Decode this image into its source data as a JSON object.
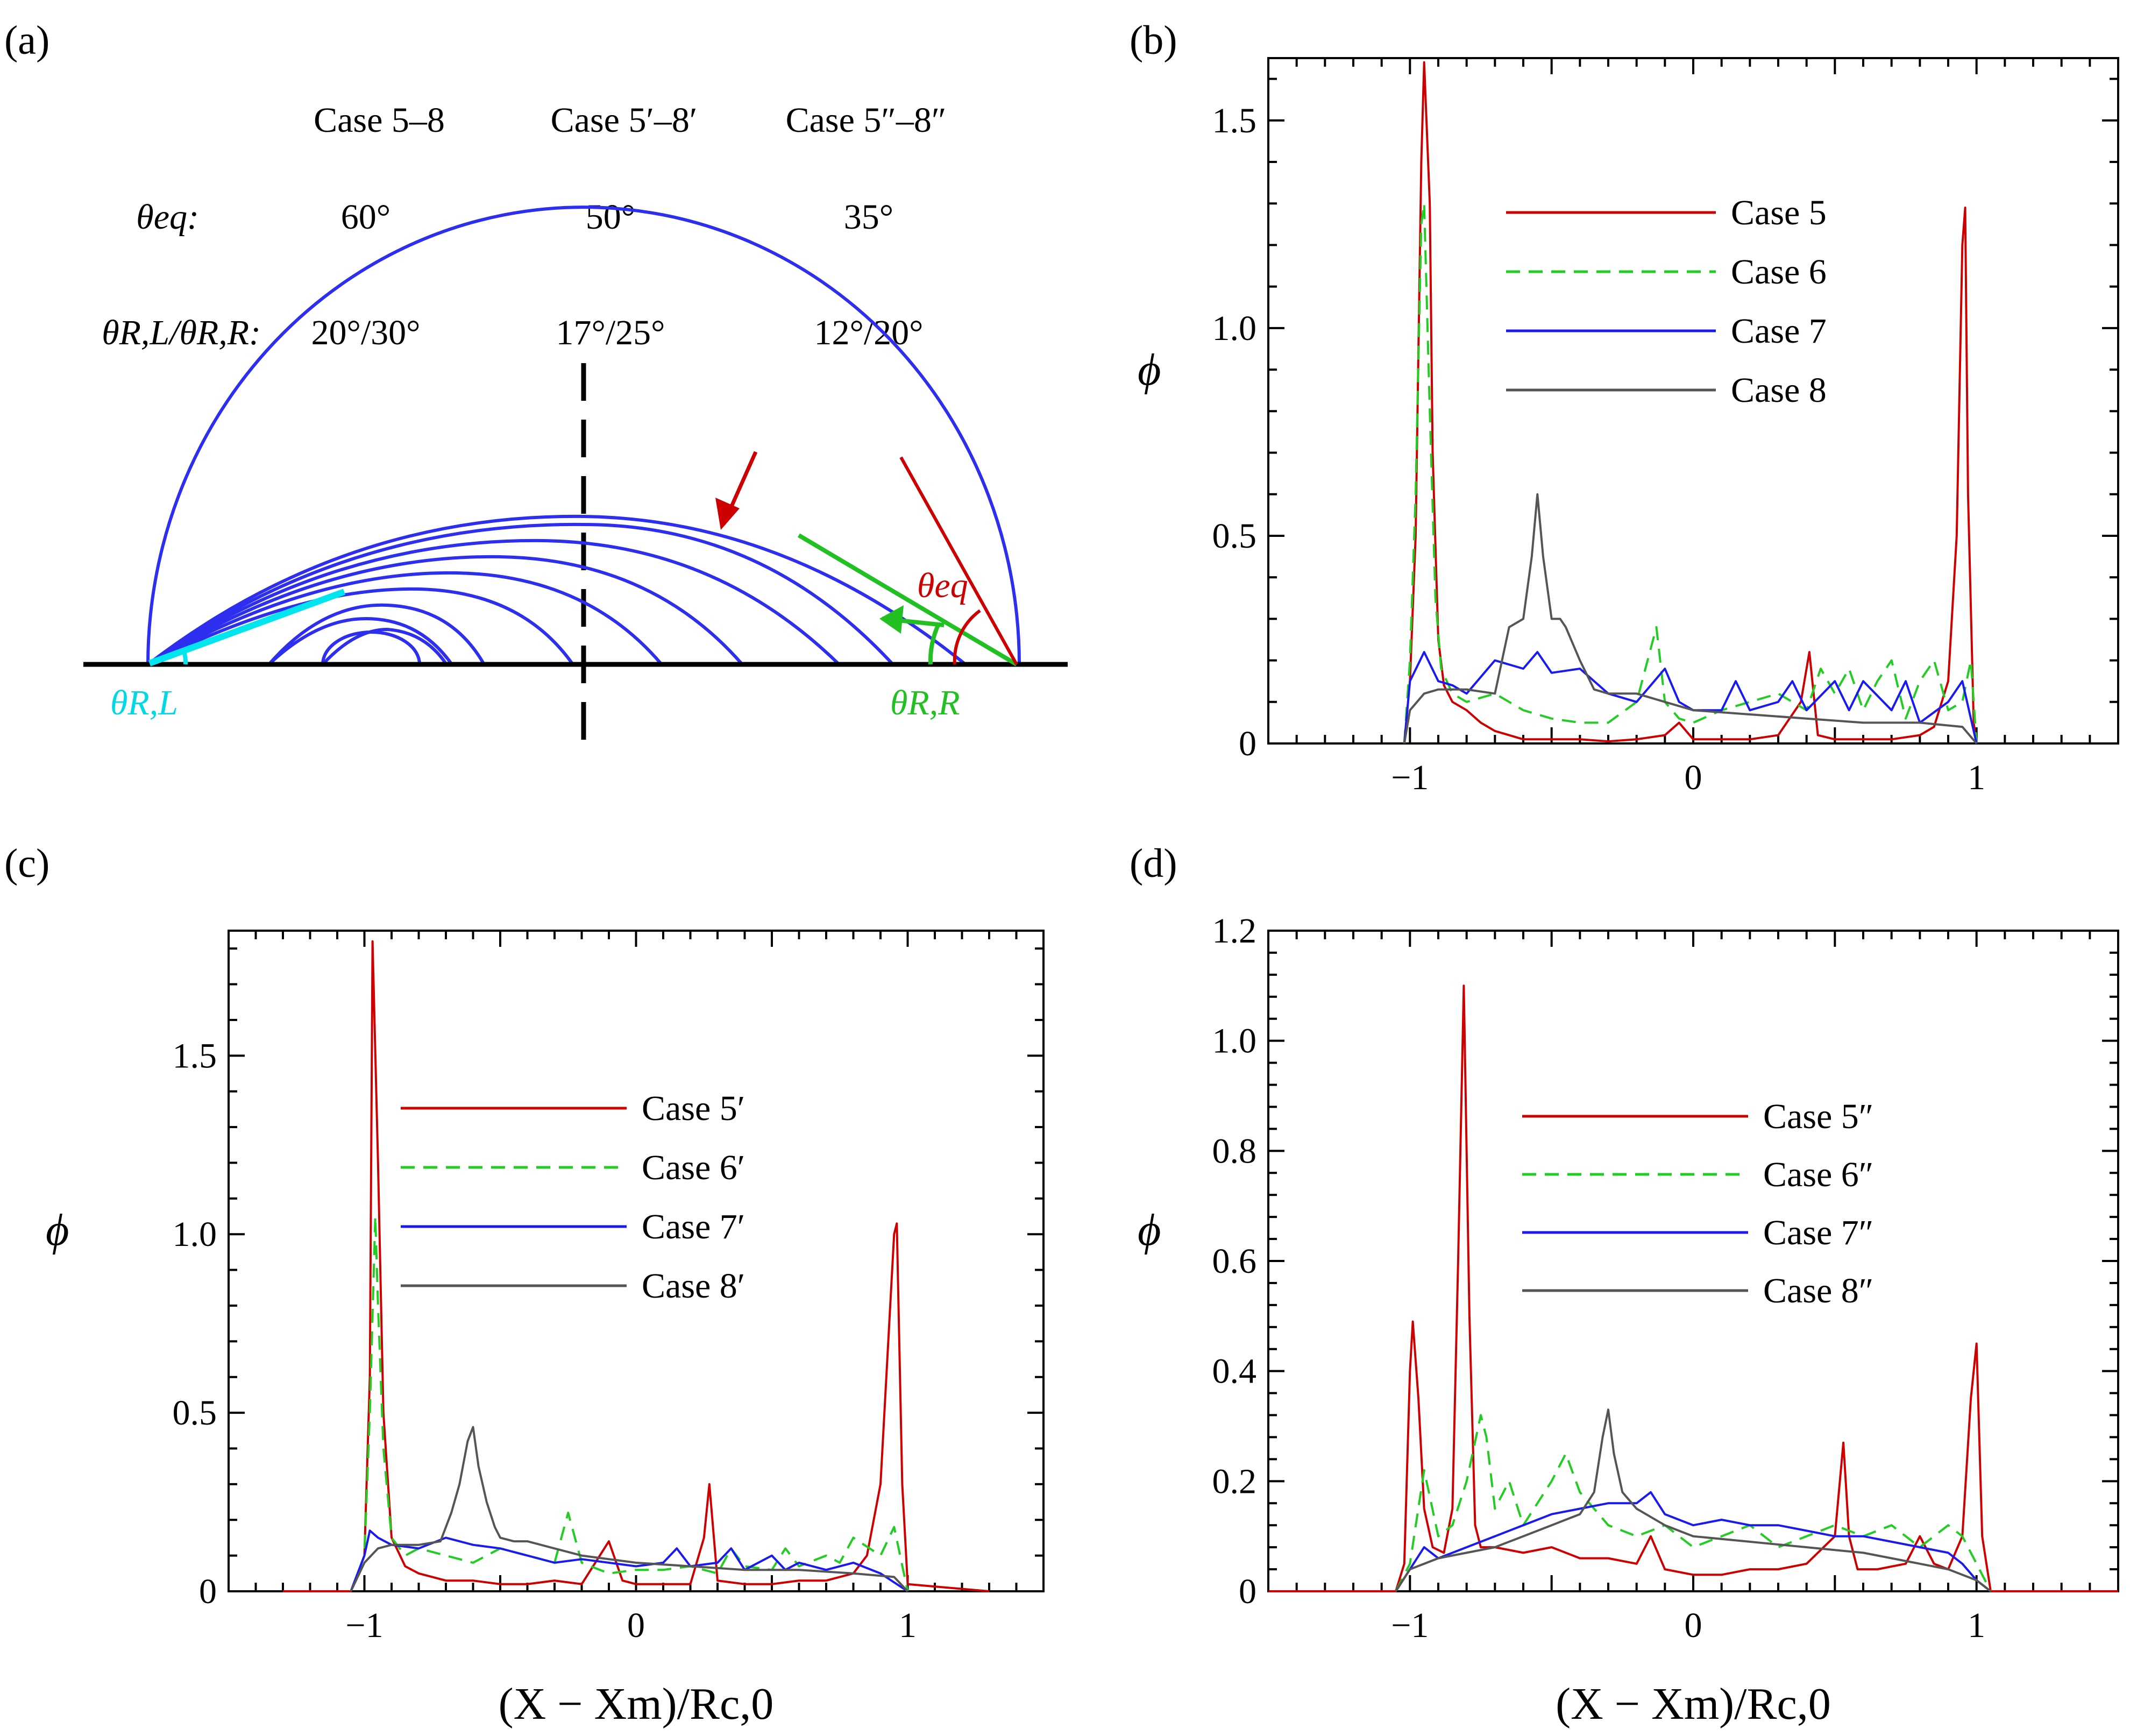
{
  "colors": {
    "case5": "#cc0000",
    "case6": "#22cc22",
    "case7": "#1a1aee",
    "case8": "#555555",
    "drop": "#2e2eee",
    "left_angle": "#00e5ee",
    "right_angle": "#22c022",
    "eq_angle": "#cc0000"
  },
  "panel_a": {
    "label": "(a)",
    "headers": [
      "Case 5–8",
      "Case 5′–8′",
      "Case 5″–8″"
    ],
    "row_eq_label": "θeq:",
    "row_eq_values": [
      "60°",
      "50°",
      "35°"
    ],
    "row_r_label": "θR,L/θR,R:",
    "row_r_values": [
      "20°/30°",
      "17°/25°",
      "12°/20°"
    ],
    "label_left": "θR,L",
    "label_right": "θR,R",
    "label_eq": "θeq"
  },
  "chart_data": [
    {
      "id": "b",
      "panel_label": "(b)",
      "type": "line",
      "xlabel": "",
      "ylabel": "ϕ",
      "xlim": [
        -1.5,
        1.5
      ],
      "ylim": [
        0,
        1.65
      ],
      "xticks": [
        -1,
        0,
        1
      ],
      "xtick_labels": [
        "−1",
        "0",
        "1"
      ],
      "yticks": [
        0,
        0.5,
        1.0,
        1.5
      ],
      "ytick_labels": [
        "0",
        "0.5",
        "1.0",
        "1.5"
      ],
      "legend": "upper-right",
      "series": [
        {
          "name": "Case 5",
          "style": "solid",
          "color": "#cc0000",
          "x": [
            -1.02,
            -1.0,
            -0.98,
            -0.96,
            -0.95,
            -0.93,
            -0.92,
            -0.9,
            -0.88,
            -0.85,
            -0.8,
            -0.75,
            -0.7,
            -0.65,
            -0.6,
            -0.5,
            -0.4,
            -0.3,
            -0.2,
            -0.1,
            -0.05,
            0.0,
            0.1,
            0.2,
            0.3,
            0.38,
            0.41,
            0.44,
            0.5,
            0.6,
            0.7,
            0.8,
            0.85,
            0.9,
            0.93,
            0.95,
            0.96,
            0.97,
            0.99,
            1.0
          ],
          "y": [
            0,
            0.15,
            0.5,
            1.4,
            1.64,
            1.3,
            0.7,
            0.25,
            0.14,
            0.1,
            0.08,
            0.05,
            0.03,
            0.02,
            0.01,
            0.01,
            0.01,
            0.005,
            0.01,
            0.02,
            0.05,
            0.01,
            0.01,
            0.01,
            0.02,
            0.1,
            0.22,
            0.02,
            0.01,
            0.01,
            0.01,
            0.02,
            0.04,
            0.15,
            0.5,
            1.2,
            1.29,
            0.6,
            0.05,
            0
          ]
        },
        {
          "name": "Case 6",
          "style": "dashed",
          "color": "#22cc22",
          "x": [
            -1.02,
            -1.0,
            -0.98,
            -0.96,
            -0.95,
            -0.93,
            -0.91,
            -0.89,
            -0.85,
            -0.8,
            -0.7,
            -0.6,
            -0.5,
            -0.4,
            -0.3,
            -0.2,
            -0.13,
            -0.1,
            -0.05,
            0.0,
            0.1,
            0.2,
            0.3,
            0.4,
            0.45,
            0.5,
            0.55,
            0.6,
            0.65,
            0.7,
            0.75,
            0.8,
            0.85,
            0.9,
            0.95,
            0.98,
            1.0
          ],
          "y": [
            0,
            0.2,
            0.6,
            1.25,
            1.3,
            0.8,
            0.35,
            0.18,
            0.12,
            0.1,
            0.12,
            0.08,
            0.06,
            0.05,
            0.05,
            0.1,
            0.28,
            0.1,
            0.06,
            0.05,
            0.08,
            0.1,
            0.12,
            0.08,
            0.18,
            0.12,
            0.18,
            0.08,
            0.15,
            0.2,
            0.06,
            0.15,
            0.2,
            0.08,
            0.1,
            0.2,
            0
          ]
        },
        {
          "name": "Case 7",
          "style": "solid",
          "color": "#1a1aee",
          "x": [
            -1.02,
            -1.0,
            -0.95,
            -0.9,
            -0.85,
            -0.8,
            -0.7,
            -0.6,
            -0.55,
            -0.5,
            -0.4,
            -0.3,
            -0.2,
            -0.1,
            -0.05,
            0.0,
            0.1,
            0.15,
            0.2,
            0.3,
            0.35,
            0.4,
            0.5,
            0.55,
            0.6,
            0.7,
            0.75,
            0.8,
            0.9,
            0.95,
            1.0
          ],
          "y": [
            0,
            0.15,
            0.22,
            0.15,
            0.14,
            0.12,
            0.2,
            0.18,
            0.22,
            0.17,
            0.18,
            0.12,
            0.1,
            0.18,
            0.1,
            0.08,
            0.08,
            0.15,
            0.08,
            0.1,
            0.15,
            0.08,
            0.15,
            0.08,
            0.15,
            0.08,
            0.15,
            0.05,
            0.1,
            0.15,
            0
          ]
        },
        {
          "name": "Case 8",
          "style": "solid",
          "color": "#555555",
          "x": [
            -1.02,
            -1.0,
            -0.95,
            -0.9,
            -0.8,
            -0.7,
            -0.65,
            -0.6,
            -0.57,
            -0.55,
            -0.53,
            -0.5,
            -0.47,
            -0.45,
            -0.4,
            -0.35,
            -0.3,
            -0.2,
            -0.1,
            0.0,
            0.2,
            0.4,
            0.6,
            0.8,
            0.95,
            1.0
          ],
          "y": [
            0,
            0.08,
            0.12,
            0.13,
            0.13,
            0.12,
            0.28,
            0.3,
            0.45,
            0.6,
            0.45,
            0.3,
            0.3,
            0.28,
            0.2,
            0.13,
            0.12,
            0.12,
            0.1,
            0.08,
            0.07,
            0.06,
            0.05,
            0.05,
            0.04,
            0
          ]
        }
      ]
    },
    {
      "id": "c",
      "panel_label": "(c)",
      "type": "line",
      "xlabel": "(X − Xm)/Rc,0",
      "ylabel": "ϕ",
      "xlim": [
        -1.5,
        1.5
      ],
      "ylim": [
        0,
        1.85
      ],
      "xticks": [
        -1,
        0,
        1
      ],
      "xtick_labels": [
        "−1",
        "0",
        "1"
      ],
      "yticks": [
        0,
        0.5,
        1.0,
        1.5
      ],
      "ytick_labels": [
        "0",
        "0.5",
        "1.0",
        "1.5"
      ],
      "legend": "upper-right",
      "series": [
        {
          "name": "Case 5′",
          "style": "solid",
          "color": "#cc0000",
          "x": [
            -1.3,
            -1.05,
            -1.0,
            -0.98,
            -0.97,
            -0.95,
            -0.93,
            -0.9,
            -0.85,
            -0.8,
            -0.7,
            -0.6,
            -0.5,
            -0.4,
            -0.3,
            -0.2,
            -0.1,
            -0.05,
            0.0,
            0.1,
            0.2,
            0.25,
            0.27,
            0.3,
            0.4,
            0.5,
            0.6,
            0.7,
            0.8,
            0.85,
            0.9,
            0.95,
            0.96,
            0.98,
            1.0,
            1.3
          ],
          "y": [
            0,
            0,
            0.1,
            0.6,
            1.82,
            1.2,
            0.5,
            0.15,
            0.07,
            0.05,
            0.03,
            0.03,
            0.02,
            0.02,
            0.03,
            0.02,
            0.14,
            0.03,
            0.02,
            0.02,
            0.02,
            0.15,
            0.3,
            0.03,
            0.02,
            0.02,
            0.03,
            0.03,
            0.05,
            0.1,
            0.3,
            1.0,
            1.03,
            0.3,
            0.02,
            0
          ]
        },
        {
          "name": "Case 6′",
          "style": "dashed",
          "color": "#22cc22",
          "x": [
            -1.05,
            -1.0,
            -0.98,
            -0.96,
            -0.95,
            -0.93,
            -0.9,
            -0.85,
            -0.8,
            -0.7,
            -0.6,
            -0.5,
            -0.4,
            -0.3,
            -0.25,
            -0.2,
            -0.1,
            0.0,
            0.1,
            0.2,
            0.3,
            0.35,
            0.4,
            0.5,
            0.55,
            0.6,
            0.7,
            0.75,
            0.8,
            0.9,
            0.95,
            1.0
          ],
          "y": [
            0,
            0.1,
            0.5,
            1.05,
            0.8,
            0.4,
            0.15,
            0.1,
            0.12,
            0.1,
            0.08,
            0.12,
            0.1,
            0.08,
            0.22,
            0.08,
            0.05,
            0.06,
            0.06,
            0.07,
            0.05,
            0.12,
            0.07,
            0.06,
            0.12,
            0.07,
            0.1,
            0.08,
            0.15,
            0.1,
            0.18,
            0
          ]
        },
        {
          "name": "Case 7′",
          "style": "solid",
          "color": "#1a1aee",
          "x": [
            -1.05,
            -1.0,
            -0.98,
            -0.95,
            -0.9,
            -0.8,
            -0.7,
            -0.6,
            -0.5,
            -0.4,
            -0.3,
            -0.2,
            -0.1,
            0.0,
            0.1,
            0.15,
            0.2,
            0.3,
            0.35,
            0.4,
            0.5,
            0.55,
            0.6,
            0.7,
            0.8,
            0.9,
            1.0
          ],
          "y": [
            0,
            0.1,
            0.17,
            0.15,
            0.13,
            0.12,
            0.15,
            0.13,
            0.12,
            0.1,
            0.08,
            0.09,
            0.08,
            0.07,
            0.08,
            0.12,
            0.07,
            0.08,
            0.12,
            0.06,
            0.1,
            0.06,
            0.08,
            0.06,
            0.08,
            0.05,
            0
          ]
        },
        {
          "name": "Case 8′",
          "style": "solid",
          "color": "#555555",
          "x": [
            -1.05,
            -1.0,
            -0.95,
            -0.9,
            -0.8,
            -0.72,
            -0.68,
            -0.65,
            -0.62,
            -0.6,
            -0.58,
            -0.55,
            -0.52,
            -0.5,
            -0.45,
            -0.4,
            -0.2,
            0.0,
            0.2,
            0.4,
            0.6,
            0.8,
            0.95,
            1.0
          ],
          "y": [
            0,
            0.08,
            0.12,
            0.13,
            0.13,
            0.14,
            0.22,
            0.3,
            0.42,
            0.46,
            0.35,
            0.25,
            0.18,
            0.15,
            0.14,
            0.14,
            0.1,
            0.08,
            0.07,
            0.06,
            0.06,
            0.05,
            0.04,
            0
          ]
        }
      ]
    },
    {
      "id": "d",
      "panel_label": "(d)",
      "type": "line",
      "xlabel": "(X − Xm)/Rc,0",
      "ylabel": "ϕ",
      "xlim": [
        -1.5,
        1.5
      ],
      "ylim": [
        0,
        1.2
      ],
      "xticks": [
        -1,
        0,
        1
      ],
      "xtick_labels": [
        "−1",
        "0",
        "1"
      ],
      "yticks": [
        0,
        0.2,
        0.4,
        0.6,
        0.8,
        1.0,
        1.2
      ],
      "ytick_labels": [
        "0",
        "0.2",
        "0.4",
        "0.6",
        "0.8",
        "1.0",
        "1.2"
      ],
      "legend": "upper-right",
      "series": [
        {
          "name": "Case 5″",
          "style": "solid",
          "color": "#cc0000",
          "x": [
            -1.5,
            -1.05,
            -1.02,
            -1.0,
            -0.99,
            -0.97,
            -0.95,
            -0.92,
            -0.88,
            -0.85,
            -0.83,
            -0.81,
            -0.79,
            -0.77,
            -0.75,
            -0.7,
            -0.6,
            -0.5,
            -0.4,
            -0.3,
            -0.2,
            -0.15,
            -0.1,
            0.0,
            0.1,
            0.2,
            0.3,
            0.4,
            0.5,
            0.53,
            0.55,
            0.58,
            0.65,
            0.75,
            0.8,
            0.85,
            0.9,
            0.95,
            0.98,
            1.0,
            1.02,
            1.05,
            1.5
          ],
          "y": [
            0,
            0,
            0.05,
            0.4,
            0.49,
            0.35,
            0.15,
            0.08,
            0.07,
            0.15,
            0.6,
            1.1,
            0.5,
            0.12,
            0.08,
            0.08,
            0.07,
            0.08,
            0.06,
            0.06,
            0.05,
            0.1,
            0.04,
            0.03,
            0.03,
            0.04,
            0.04,
            0.05,
            0.1,
            0.27,
            0.1,
            0.04,
            0.04,
            0.05,
            0.1,
            0.05,
            0.04,
            0.1,
            0.35,
            0.45,
            0.1,
            0,
            0
          ]
        },
        {
          "name": "Case 6″",
          "style": "dashed",
          "color": "#22cc22",
          "x": [
            -1.05,
            -1.0,
            -0.95,
            -0.9,
            -0.85,
            -0.8,
            -0.75,
            -0.73,
            -0.7,
            -0.65,
            -0.6,
            -0.5,
            -0.45,
            -0.4,
            -0.3,
            -0.2,
            -0.1,
            0.0,
            0.1,
            0.2,
            0.3,
            0.4,
            0.5,
            0.6,
            0.7,
            0.8,
            0.9,
            0.95,
            1.0,
            1.05
          ],
          "y": [
            0,
            0.05,
            0.22,
            0.1,
            0.12,
            0.2,
            0.32,
            0.28,
            0.15,
            0.2,
            0.12,
            0.2,
            0.25,
            0.18,
            0.12,
            0.1,
            0.12,
            0.08,
            0.1,
            0.12,
            0.08,
            0.1,
            0.12,
            0.1,
            0.12,
            0.08,
            0.12,
            0.1,
            0.05,
            0
          ]
        },
        {
          "name": "Case 7″",
          "style": "solid",
          "color": "#1a1aee",
          "x": [
            -1.05,
            -1.0,
            -0.95,
            -0.9,
            -0.8,
            -0.7,
            -0.6,
            -0.5,
            -0.4,
            -0.3,
            -0.2,
            -0.15,
            -0.1,
            0.0,
            0.1,
            0.2,
            0.3,
            0.4,
            0.5,
            0.6,
            0.7,
            0.8,
            0.9,
            0.95,
            1.0,
            1.05
          ],
          "y": [
            0,
            0.04,
            0.08,
            0.06,
            0.08,
            0.1,
            0.12,
            0.14,
            0.15,
            0.16,
            0.16,
            0.18,
            0.14,
            0.12,
            0.13,
            0.12,
            0.12,
            0.11,
            0.1,
            0.1,
            0.09,
            0.08,
            0.07,
            0.05,
            0.02,
            0
          ]
        },
        {
          "name": "Case 8″",
          "style": "solid",
          "color": "#555555",
          "x": [
            -1.05,
            -1.0,
            -0.9,
            -0.8,
            -0.7,
            -0.6,
            -0.5,
            -0.4,
            -0.35,
            -0.32,
            -0.3,
            -0.28,
            -0.25,
            -0.2,
            -0.1,
            0.0,
            0.2,
            0.4,
            0.6,
            0.8,
            0.9,
            1.0,
            1.05
          ],
          "y": [
            0,
            0.04,
            0.06,
            0.07,
            0.08,
            0.1,
            0.12,
            0.14,
            0.18,
            0.28,
            0.33,
            0.25,
            0.18,
            0.15,
            0.12,
            0.1,
            0.09,
            0.08,
            0.07,
            0.05,
            0.04,
            0.02,
            0
          ]
        }
      ]
    }
  ]
}
